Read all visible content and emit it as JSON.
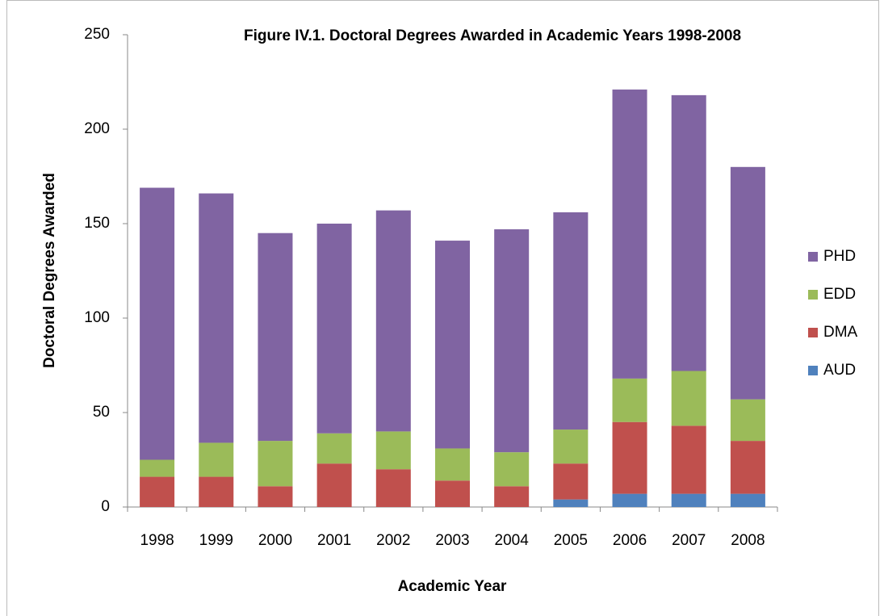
{
  "chart_data": {
    "type": "stacked_bar",
    "title": "Figure IV.1. Doctoral Degrees Awarded in Academic Years 1998-2008",
    "x_label": "Academic Year",
    "y_label": "Doctoral Degrees Awarded",
    "categories": [
      "1998",
      "1999",
      "2000",
      "2001",
      "2002",
      "2003",
      "2004",
      "2005",
      "2006",
      "2007",
      "2008"
    ],
    "series": [
      {
        "name": "AUD",
        "color": "#4f81bd",
        "values": [
          0,
          0,
          0,
          0,
          0,
          0,
          0,
          4,
          7,
          7,
          7
        ]
      },
      {
        "name": "DMA",
        "color": "#c0504d",
        "values": [
          16,
          16,
          11,
          23,
          20,
          14,
          11,
          19,
          38,
          36,
          28
        ]
      },
      {
        "name": "EDD",
        "color": "#9bbb59",
        "values": [
          9,
          18,
          24,
          16,
          20,
          17,
          18,
          18,
          23,
          29,
          22
        ]
      },
      {
        "name": "PHD",
        "color": "#8064a2",
        "values": [
          144,
          132,
          110,
          111,
          117,
          110,
          118,
          115,
          153,
          146,
          123
        ]
      }
    ],
    "ylim": [
      0,
      250
    ],
    "yticks": [
      0,
      50,
      100,
      150,
      200,
      250
    ],
    "grid": false,
    "legend": "right"
  }
}
